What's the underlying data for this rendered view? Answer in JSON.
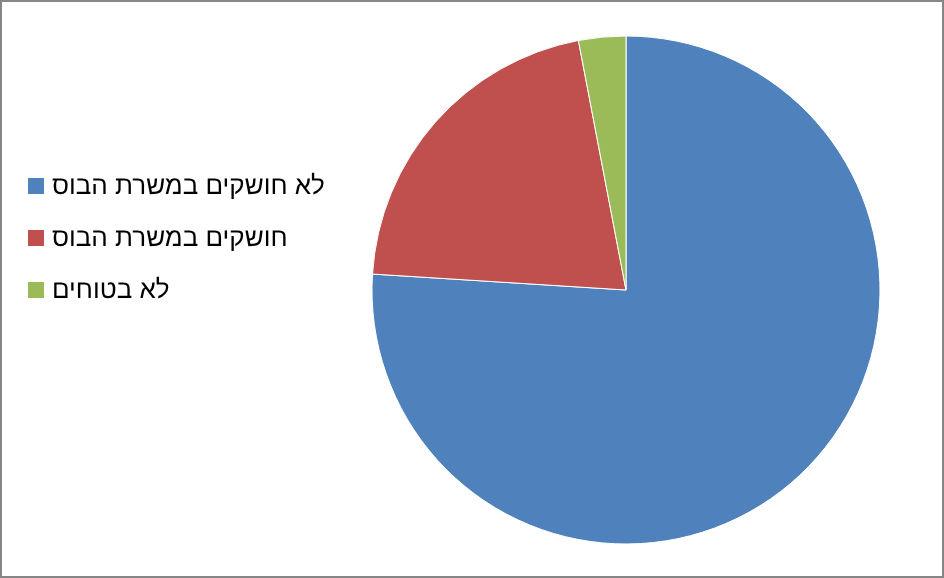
{
  "chart_data": {
    "type": "pie",
    "categories": [
      "לא חושקים במשרת הבוס",
      "חושקים במשרת הבוס",
      "לא בטוחים"
    ],
    "values": [
      76,
      21,
      3
    ],
    "colors": [
      "#4f81bd",
      "#c0504d",
      "#9bbb59"
    ],
    "legend": "left"
  }
}
